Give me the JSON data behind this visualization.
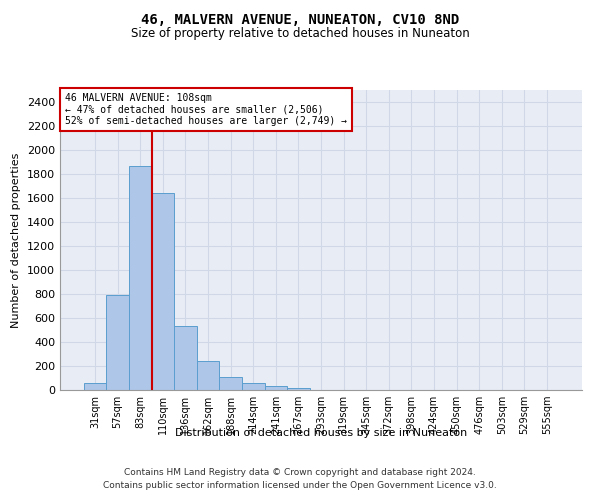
{
  "title": "46, MALVERN AVENUE, NUNEATON, CV10 8ND",
  "subtitle": "Size of property relative to detached houses in Nuneaton",
  "xlabel": "Distribution of detached houses by size in Nuneaton",
  "ylabel": "Number of detached properties",
  "categories": [
    "31sqm",
    "57sqm",
    "83sqm",
    "110sqm",
    "136sqm",
    "162sqm",
    "188sqm",
    "214sqm",
    "241sqm",
    "267sqm",
    "293sqm",
    "319sqm",
    "345sqm",
    "372sqm",
    "398sqm",
    "424sqm",
    "450sqm",
    "476sqm",
    "503sqm",
    "529sqm",
    "555sqm"
  ],
  "values": [
    60,
    790,
    1870,
    1640,
    530,
    240,
    110,
    60,
    30,
    20,
    0,
    0,
    0,
    0,
    0,
    0,
    0,
    0,
    0,
    0,
    0
  ],
  "bar_color": "#aec6e8",
  "bar_edge_color": "#5a9ecf",
  "ylim": [
    0,
    2500
  ],
  "yticks": [
    0,
    200,
    400,
    600,
    800,
    1000,
    1200,
    1400,
    1600,
    1800,
    2000,
    2200,
    2400
  ],
  "vline_color": "#cc0000",
  "annotation_box_color": "#cc0000",
  "property_line_label": "46 MALVERN AVENUE: 108sqm",
  "annotation_line1": "← 47% of detached houses are smaller (2,506)",
  "annotation_line2": "52% of semi-detached houses are larger (2,749) →",
  "grid_color": "#d0d8e8",
  "background_color": "#e8edf5",
  "footer_line1": "Contains HM Land Registry data © Crown copyright and database right 2024.",
  "footer_line2": "Contains public sector information licensed under the Open Government Licence v3.0."
}
